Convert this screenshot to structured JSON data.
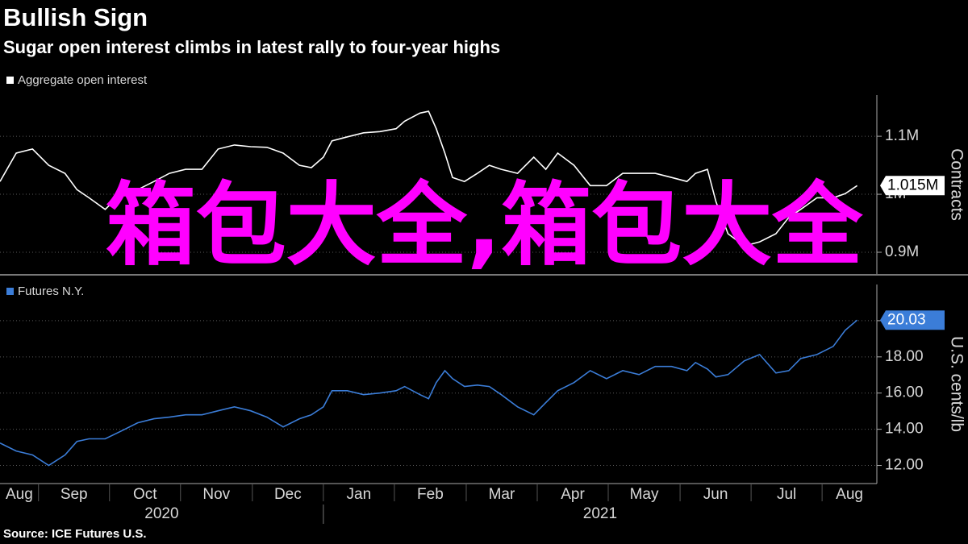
{
  "title": "Bullish Sign",
  "subtitle": "Sugar open interest climbs in latest rally to four-year highs",
  "source": "Source: ICE Futures U.S.",
  "overlay_text": "箱包大全,箱包大全",
  "chart_data": [
    {
      "type": "line",
      "y_label": "Contracts",
      "legend": "top-left",
      "grid": true,
      "x": [
        2020.622,
        2020.641,
        2020.66,
        2020.679,
        2020.698,
        2020.712,
        2020.726,
        2020.745,
        2020.764,
        2020.783,
        2020.802,
        2020.82,
        2020.839,
        2020.858,
        2020.877,
        2020.896,
        2020.915,
        2020.934,
        2020.953,
        2020.972,
        2020.986,
        2021.0,
        2021.01,
        2021.028,
        2021.047,
        2021.066,
        2021.085,
        2021.095,
        2021.113,
        2021.123,
        2021.132,
        2021.142,
        2021.151,
        2021.165,
        2021.18,
        2021.194,
        2021.208,
        2021.227,
        2021.246,
        2021.26,
        2021.274,
        2021.293,
        2021.312,
        2021.331,
        2021.35,
        2021.369,
        2021.388,
        2021.407,
        2021.425,
        2021.435,
        2021.449,
        2021.459,
        2021.473,
        2021.492,
        2021.51,
        2021.529,
        2021.544,
        2021.558,
        2021.577,
        2021.596,
        2021.61,
        2021.624
      ],
      "xlim": [
        2020.622,
        2021.647
      ],
      "ylim": [
        862500,
        1171000
      ],
      "yticks": [
        {
          "value": 900000,
          "label": "0.9M"
        },
        {
          "value": 1000000,
          "label": "1M"
        },
        {
          "value": 1100000,
          "label": "1.1M"
        }
      ],
      "series": [
        {
          "name": "Aggregate open interest",
          "color": "#ffffff",
          "values": [
            1022000,
            1071000,
            1078000,
            1050000,
            1036000,
            1008000,
            994000,
            974000,
            1001000,
            1008000,
            1022000,
            1036000,
            1043000,
            1043000,
            1078000,
            1085000,
            1082000,
            1081000,
            1071000,
            1050000,
            1046000,
            1064000,
            1092000,
            1099000,
            1106000,
            1108000,
            1113000,
            1126000,
            1140000,
            1143000,
            1113000,
            1071000,
            1029000,
            1022000,
            1036000,
            1050000,
            1043000,
            1036000,
            1064000,
            1043000,
            1071000,
            1050000,
            1015000,
            1015000,
            1036000,
            1036000,
            1036000,
            1029000,
            1022000,
            1036000,
            1043000,
            987000,
            932000,
            911000,
            918000,
            932000,
            960000,
            974000,
            994000,
            994000,
            1001000,
            1015000
          ],
          "value_labels": [
            null,
            null,
            null,
            null,
            null,
            null,
            null,
            null,
            null,
            null,
            null,
            null,
            null,
            null,
            null,
            null,
            null,
            null,
            null,
            null,
            null,
            null,
            null,
            null,
            null,
            null,
            null,
            null,
            null,
            null,
            null,
            null,
            null,
            null,
            null,
            null,
            null,
            null,
            null,
            null,
            null,
            null,
            null,
            null,
            null,
            null,
            null,
            null,
            null,
            null,
            null,
            null,
            null,
            null,
            null,
            null,
            null,
            null,
            null,
            null,
            null,
            "1.015M"
          ]
        }
      ]
    },
    {
      "type": "line",
      "y_label": "U.S. cents/lb",
      "legend": "top-left",
      "grid": true,
      "x": [
        2020.622,
        2020.641,
        2020.66,
        2020.679,
        2020.698,
        2020.712,
        2020.726,
        2020.745,
        2020.764,
        2020.783,
        2020.802,
        2020.82,
        2020.839,
        2020.858,
        2020.877,
        2020.896,
        2020.915,
        2020.934,
        2020.953,
        2020.972,
        2020.986,
        2021.0,
        2021.01,
        2021.028,
        2021.047,
        2021.066,
        2021.085,
        2021.095,
        2021.113,
        2021.123,
        2021.132,
        2021.142,
        2021.151,
        2021.165,
        2021.18,
        2021.194,
        2021.208,
        2021.227,
        2021.246,
        2021.26,
        2021.274,
        2021.293,
        2021.312,
        2021.331,
        2021.35,
        2021.369,
        2021.388,
        2021.407,
        2021.425,
        2021.435,
        2021.449,
        2021.459,
        2021.473,
        2021.492,
        2021.51,
        2021.529,
        2021.544,
        2021.558,
        2021.577,
        2021.596,
        2021.61,
        2021.624
      ],
      "xlim": [
        2020.622,
        2021.647
      ],
      "xticks": [
        {
          "value": 2020.583,
          "label": "Aug"
        },
        {
          "value": 2020.667,
          "label": "Sep"
        },
        {
          "value": 2020.75,
          "label": "Oct"
        },
        {
          "value": 2020.833,
          "label": "Nov"
        },
        {
          "value": 2020.917,
          "label": "Dec"
        },
        {
          "value": 2021.0,
          "label": "Jan"
        },
        {
          "value": 2021.083,
          "label": "Feb"
        },
        {
          "value": 2021.167,
          "label": "Mar"
        },
        {
          "value": 2021.25,
          "label": "Apr"
        },
        {
          "value": 2021.333,
          "label": "May"
        },
        {
          "value": 2021.417,
          "label": "Jun"
        },
        {
          "value": 2021.5,
          "label": "Jul"
        },
        {
          "value": 2021.583,
          "label": "Aug"
        }
      ],
      "year_ticks": [
        {
          "value": 2020,
          "label": "2020"
        },
        {
          "value": 2021,
          "label": "2021"
        }
      ],
      "ylim": [
        11,
        22
      ],
      "yticks": [
        {
          "value": 12,
          "label": "12.00"
        },
        {
          "value": 14,
          "label": "14.00"
        },
        {
          "value": 16,
          "label": "16.00"
        },
        {
          "value": 18,
          "label": "18.00"
        },
        {
          "value": 20,
          "label": "20.00"
        }
      ],
      "series": [
        {
          "name": "Futures N.Y.",
          "color": "#3b7dd8",
          "values": [
            13.24,
            12.8,
            12.58,
            12.0,
            12.58,
            13.33,
            13.47,
            13.47,
            13.91,
            14.36,
            14.58,
            14.67,
            14.8,
            14.8,
            15.02,
            15.24,
            15.02,
            14.67,
            14.13,
            14.58,
            14.8,
            15.24,
            16.13,
            16.13,
            15.91,
            16.0,
            16.13,
            16.36,
            15.91,
            15.69,
            16.58,
            17.24,
            16.8,
            16.36,
            16.44,
            16.36,
            15.91,
            15.24,
            14.8,
            15.47,
            16.13,
            16.58,
            17.24,
            16.8,
            17.24,
            17.02,
            17.47,
            17.47,
            17.24,
            17.69,
            17.33,
            16.89,
            17.02,
            17.78,
            18.13,
            17.11,
            17.24,
            17.91,
            18.13,
            18.58,
            19.47,
            20.03
          ],
          "value_labels": [
            null,
            null,
            null,
            null,
            null,
            null,
            null,
            null,
            null,
            null,
            null,
            null,
            null,
            null,
            null,
            null,
            null,
            null,
            null,
            null,
            null,
            null,
            null,
            null,
            null,
            null,
            null,
            null,
            null,
            null,
            null,
            null,
            null,
            null,
            null,
            null,
            null,
            null,
            null,
            null,
            null,
            null,
            null,
            null,
            null,
            null,
            null,
            null,
            null,
            null,
            null,
            null,
            null,
            null,
            null,
            null,
            null,
            null,
            null,
            null,
            null,
            "20.03"
          ]
        }
      ]
    }
  ]
}
